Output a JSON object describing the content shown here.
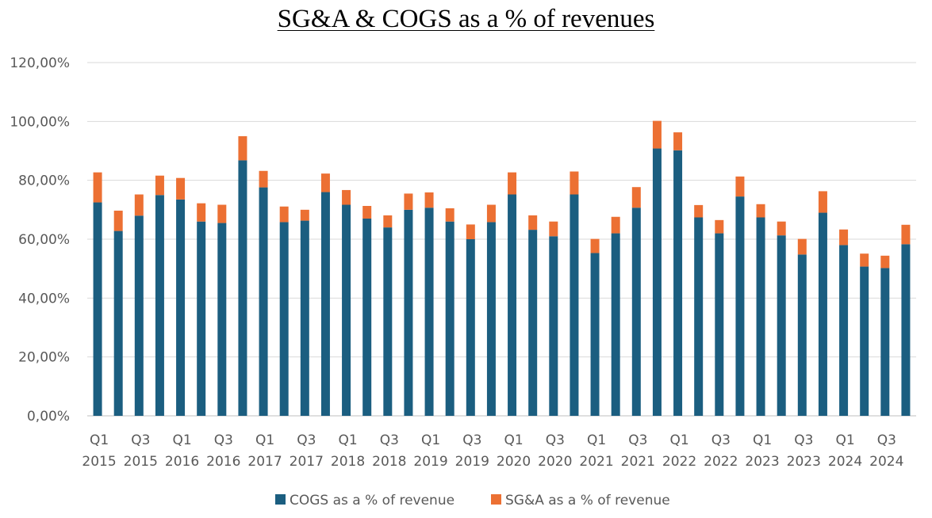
{
  "chart_data": {
    "type": "bar",
    "stacked": true,
    "title": "SG&A & COGS as a % of revenues",
    "xlabel": "",
    "ylabel": "",
    "ylim": [
      0,
      120
    ],
    "yticks": [
      "0,00%",
      "20,00%",
      "40,00%",
      "60,00%",
      "80,00%",
      "100,00%",
      "120,00%"
    ],
    "grid": true,
    "legend_position": "bottom",
    "categories": [
      "Q1 2015",
      "Q2 2015",
      "Q3 2015",
      "Q4 2015",
      "Q1 2016",
      "Q2 2016",
      "Q3 2016",
      "Q4 2016",
      "Q1 2017",
      "Q2 2017",
      "Q3 2017",
      "Q4 2017",
      "Q1 2018",
      "Q2 2018",
      "Q3 2018",
      "Q4 2018",
      "Q1 2019",
      "Q2 2019",
      "Q3 2019",
      "Q4 2019",
      "Q1 2020",
      "Q2 2020",
      "Q3 2020",
      "Q4 2020",
      "Q1 2021",
      "Q2 2021",
      "Q3 2021",
      "Q4 2021",
      "Q1 2022",
      "Q2 2022",
      "Q3 2022",
      "Q4 2022",
      "Q1 2023",
      "Q2 2023",
      "Q3 2023",
      "Q4 2023",
      "Q1 2024",
      "Q2 2024",
      "Q3 2024",
      "Q4 2024"
    ],
    "x_tick_labels": [
      {
        "line1": "Q1",
        "line2": "2015"
      },
      {
        "line1": "Q3",
        "line2": "2015"
      },
      {
        "line1": "Q1",
        "line2": "2016"
      },
      {
        "line1": "Q3",
        "line2": "2016"
      },
      {
        "line1": "Q1",
        "line2": "2017"
      },
      {
        "line1": "Q3",
        "line2": "2017"
      },
      {
        "line1": "Q1",
        "line2": "2018"
      },
      {
        "line1": "Q3",
        "line2": "2018"
      },
      {
        "line1": "Q1",
        "line2": "2019"
      },
      {
        "line1": "Q3",
        "line2": "2019"
      },
      {
        "line1": "Q1",
        "line2": "2020"
      },
      {
        "line1": "Q3",
        "line2": "2020"
      },
      {
        "line1": "Q1",
        "line2": "2021"
      },
      {
        "line1": "Q3",
        "line2": "2021"
      },
      {
        "line1": "Q1",
        "line2": "2022"
      },
      {
        "line1": "Q3",
        "line2": "2022"
      },
      {
        "line1": "Q1",
        "line2": "2023"
      },
      {
        "line1": "Q3",
        "line2": "2023"
      },
      {
        "line1": "Q1",
        "line2": "2024"
      },
      {
        "line1": "Q3",
        "line2": "2024"
      }
    ],
    "series": [
      {
        "name": "COGS as a % of revenue",
        "color": "#1b5e80",
        "values": [
          72.5,
          62.8,
          68.0,
          75.0,
          73.5,
          66.0,
          65.5,
          86.8,
          77.6,
          65.8,
          66.3,
          76.0,
          71.7,
          67.0,
          64.0,
          70.0,
          70.7,
          66.0,
          60.0,
          65.8,
          75.2,
          63.2,
          61.0,
          75.2,
          55.3,
          62.0,
          70.7,
          90.8,
          90.2,
          67.4,
          62.0,
          74.5,
          67.4,
          61.3,
          54.8,
          69.0,
          58.0,
          50.7,
          50.2,
          58.3
        ]
      },
      {
        "name": "SG&A as a % of revenue",
        "color": "#ec7033",
        "values": [
          10.2,
          6.9,
          7.2,
          6.6,
          7.3,
          6.2,
          6.2,
          8.2,
          5.6,
          5.3,
          3.7,
          6.3,
          5.0,
          4.3,
          4.1,
          5.5,
          5.2,
          4.5,
          5.0,
          5.9,
          7.5,
          4.9,
          5.0,
          7.8,
          4.8,
          5.6,
          7.0,
          9.4,
          6.1,
          4.2,
          4.5,
          6.8,
          4.5,
          4.7,
          5.3,
          7.3,
          5.3,
          4.4,
          4.2,
          6.6
        ]
      }
    ]
  }
}
